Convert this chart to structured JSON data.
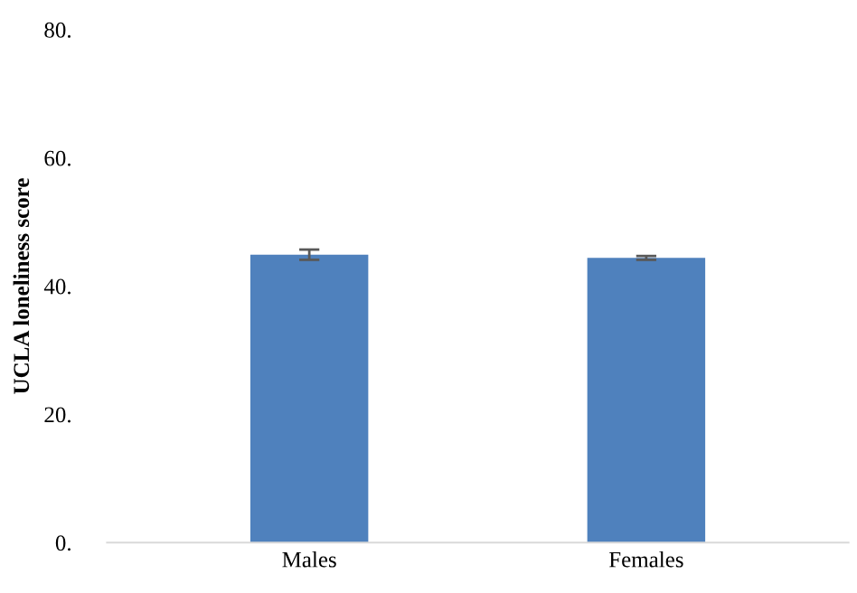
{
  "chart_data": {
    "type": "bar",
    "ylabel": "UCLA loneliness score",
    "categories": [
      "Males",
      "Females"
    ],
    "values": [
      44.9,
      44.4
    ],
    "errors": [
      0.8,
      0.3
    ],
    "color": "#4f81bd",
    "ylim": [
      0,
      80
    ],
    "yticks": [
      {
        "value": 0,
        "label": "0."
      },
      {
        "value": 20,
        "label": "20."
      },
      {
        "value": 40,
        "label": "40."
      },
      {
        "value": 60,
        "label": "60."
      },
      {
        "value": 80,
        "label": "80."
      }
    ],
    "grid": false
  }
}
